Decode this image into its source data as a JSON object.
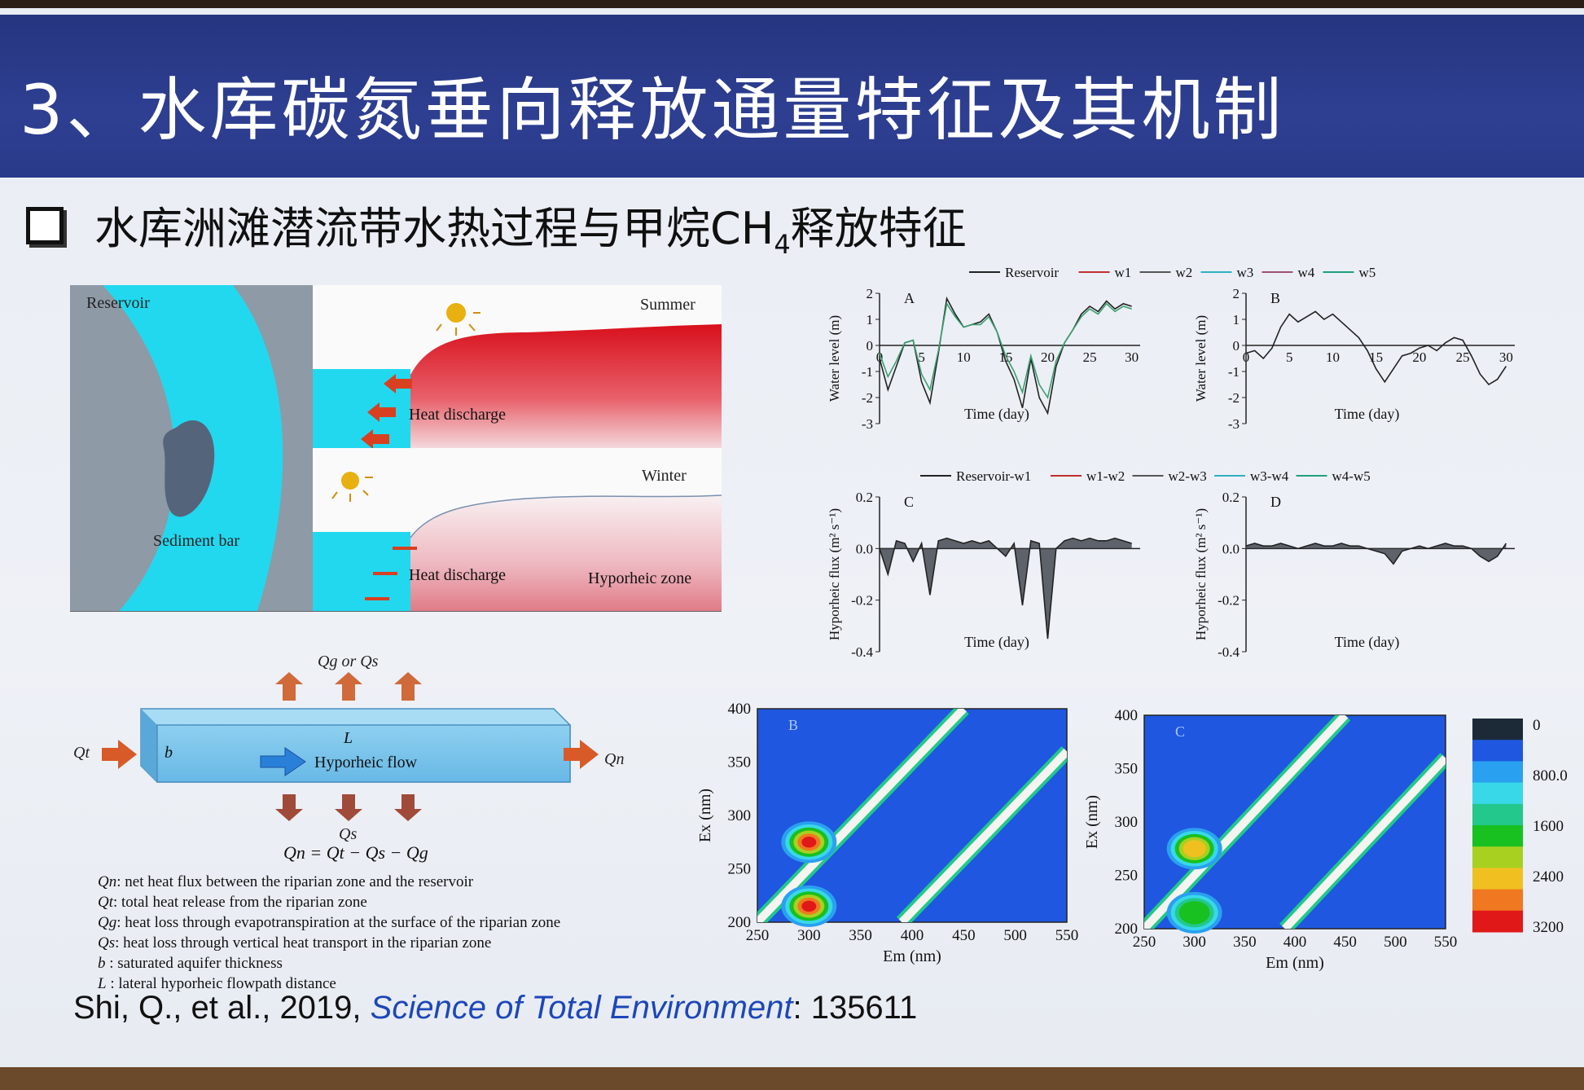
{
  "slide": {
    "title": "3、水库碳氮垂向释放通量特征及其机制",
    "subtitle": "水库洲滩潜流带水热过程与甲烷CH",
    "subtitle_sub": "4",
    "subtitle_tail": "释放特征",
    "citation_authors": "Shi, Q., et al., 2019, ",
    "citation_journal": "Science of Total Environment",
    "citation_number": ": 135611"
  },
  "schematic": {
    "reservoir_label": "Reservoir",
    "sediment_label": "Sediment bar",
    "summer_label": "Summer",
    "winter_label": "Winter",
    "heat_discharge_1": "Heat discharge",
    "heat_discharge_2": "Heat discharge",
    "hyporheic_zone_label": "Hyporheic zone"
  },
  "flow_diagram": {
    "top_label": "Qg or Qs",
    "left_label": "Qt",
    "right_label": "Qn",
    "bottom_label": "Qs",
    "b_label": "b",
    "L_label": "L",
    "flow_label": "Hyporheic flow",
    "equation": "Qn = Qt − Qs − Qg",
    "legend": [
      {
        "sym": "Qn",
        "text": ": net heat flux between the riparian zone and the reservoir"
      },
      {
        "sym": "Qt",
        "text": ": total heat release from the riparian zone"
      },
      {
        "sym": "Qg",
        "text": ": heat loss through evapotranspiration at the surface of the riparian zone"
      },
      {
        "sym": "Qs",
        "text": ": heat loss through vertical heat transport in the riparian zone"
      },
      {
        "sym": "b",
        "text": " :  saturated aquifer thickness"
      },
      {
        "sym": "L",
        "text": " :  lateral hyporheic flowpath distance"
      }
    ]
  },
  "chart_data": [
    {
      "type": "line",
      "panel": "A",
      "legend": [
        "Reservoir",
        "w1",
        "w2",
        "w3",
        "w4",
        "w5"
      ],
      "legend_colors": [
        "#222222",
        "#c03030",
        "#555555",
        "#30b0c0",
        "#a05070",
        "#20a080"
      ],
      "xlabel": "Time (day)",
      "ylabel": "Water level (m)",
      "xlim": [
        0,
        31
      ],
      "ylim": [
        -3,
        2
      ],
      "xticks": [
        "0",
        "5",
        "10",
        "15",
        "20",
        "25",
        "30"
      ],
      "yticks": [
        "2",
        "1",
        "0",
        "-1",
        "-2",
        "-3"
      ],
      "x": [
        0,
        1,
        2,
        3,
        4,
        5,
        6,
        7,
        8,
        9,
        10,
        11,
        12,
        13,
        14,
        15,
        16,
        17,
        18,
        19,
        20,
        21,
        22,
        23,
        24,
        25,
        26,
        27,
        28,
        29,
        30
      ],
      "series": [
        {
          "name": "Reservoir",
          "values": [
            -0.5,
            -1.7,
            -0.8,
            0.1,
            0.2,
            -1.4,
            -2.2,
            -0.3,
            1.8,
            1.2,
            0.7,
            0.8,
            0.9,
            1.2,
            0.5,
            -0.6,
            -1.3,
            -2.4,
            -0.5,
            -2.0,
            -2.6,
            -0.8,
            0.1,
            0.6,
            1.2,
            1.5,
            1.3,
            1.7,
            1.4,
            1.6,
            1.5
          ]
        },
        {
          "name": "w1",
          "values": [
            -0.3,
            -1.2,
            -0.6,
            0.1,
            0.2,
            -1.1,
            -1.7,
            -0.2,
            1.6,
            1.1,
            0.7,
            0.8,
            0.8,
            1.1,
            0.5,
            -0.4,
            -1.0,
            -1.8,
            -0.4,
            -1.5,
            -2.0,
            -0.6,
            0.1,
            0.6,
            1.1,
            1.4,
            1.2,
            1.6,
            1.3,
            1.5,
            1.4
          ]
        }
      ]
    },
    {
      "type": "line",
      "panel": "B",
      "xlabel": "Time (day)",
      "ylabel": "Water level (m)",
      "xlim": [
        0,
        31
      ],
      "ylim": [
        -3,
        2
      ],
      "xticks": [
        "0",
        "5",
        "10",
        "15",
        "20",
        "25",
        "30"
      ],
      "yticks": [
        "2",
        "1",
        "0",
        "-1",
        "-2",
        "-3"
      ],
      "x": [
        0,
        1,
        2,
        3,
        4,
        5,
        6,
        7,
        8,
        9,
        10,
        11,
        12,
        13,
        14,
        15,
        16,
        17,
        18,
        19,
        20,
        21,
        22,
        23,
        24,
        25,
        26,
        27,
        28,
        29,
        30
      ],
      "series": [
        {
          "name": "Reservoir",
          "values": [
            -0.3,
            -0.2,
            -0.5,
            -0.1,
            0.7,
            1.2,
            0.9,
            1.1,
            1.3,
            1.0,
            1.2,
            0.9,
            0.6,
            0.3,
            -0.2,
            -0.9,
            -1.4,
            -0.9,
            -0.4,
            -0.3,
            -0.1,
            0.0,
            -0.2,
            0.1,
            0.3,
            0.2,
            -0.4,
            -1.1,
            -1.5,
            -1.3,
            -0.8
          ]
        }
      ]
    },
    {
      "type": "line",
      "panel": "C",
      "legend": [
        "Reservoir-w1",
        "w1-w2",
        "w2-w3",
        "w3-w4",
        "w4-w5"
      ],
      "legend_colors": [
        "#222222",
        "#c03030",
        "#555555",
        "#30b0c0",
        "#20a080"
      ],
      "xlabel": "Time (day)",
      "ylabel": "Hyporheic flux (m² s⁻¹)",
      "xlim": [
        0,
        31
      ],
      "ylim": [
        -0.4,
        0.2
      ],
      "yticks": [
        "0.2",
        "0.0",
        "-0.2",
        "-0.4"
      ],
      "x": [
        0,
        1,
        2,
        3,
        4,
        5,
        6,
        7,
        8,
        9,
        10,
        11,
        12,
        13,
        14,
        15,
        16,
        17,
        18,
        19,
        20,
        21,
        22,
        23,
        24,
        25,
        26,
        27,
        28,
        29,
        30
      ],
      "series": [
        {
          "name": "Reservoir-w1",
          "values": [
            0.0,
            -0.1,
            0.03,
            0.02,
            -0.05,
            0.02,
            -0.18,
            0.03,
            0.04,
            0.03,
            0.02,
            0.03,
            0.02,
            0.03,
            0.0,
            -0.03,
            0.02,
            -0.22,
            0.03,
            0.02,
            -0.35,
            0.0,
            0.03,
            0.04,
            0.03,
            0.04,
            0.03,
            0.03,
            0.04,
            0.03,
            0.02
          ]
        }
      ]
    },
    {
      "type": "line",
      "panel": "D",
      "xlabel": "Time (day)",
      "ylabel": "Hyporheic flux (m² s⁻¹)",
      "xlim": [
        0,
        31
      ],
      "ylim": [
        -0.4,
        0.2
      ],
      "yticks": [
        "0.2",
        "0.0",
        "-0.2",
        "-0.4"
      ],
      "x": [
        0,
        1,
        2,
        3,
        4,
        5,
        6,
        7,
        8,
        9,
        10,
        11,
        12,
        13,
        14,
        15,
        16,
        17,
        18,
        19,
        20,
        21,
        22,
        23,
        24,
        25,
        26,
        27,
        28,
        29,
        30
      ],
      "series": [
        {
          "name": "Reservoir-w1",
          "values": [
            0.01,
            0.02,
            0.01,
            0.01,
            0.02,
            0.01,
            0.0,
            0.01,
            0.02,
            0.01,
            0.01,
            0.02,
            0.01,
            0.01,
            0.0,
            -0.01,
            -0.02,
            -0.06,
            -0.01,
            0.0,
            0.01,
            0.0,
            0.01,
            0.02,
            0.01,
            0.01,
            0.0,
            -0.03,
            -0.05,
            -0.03,
            0.02
          ]
        }
      ]
    },
    {
      "type": "heatmap",
      "panel": "B",
      "xlabel": "Em (nm)",
      "ylabel": "Ex (nm)",
      "xlim": [
        250,
        550
      ],
      "ylim": [
        200,
        400
      ],
      "xticks": [
        "250",
        "300",
        "350",
        "400",
        "450",
        "500",
        "550"
      ],
      "yticks": [
        "400",
        "350",
        "300",
        "250",
        "200"
      ],
      "peaks": [
        {
          "em": 300,
          "ex": 275,
          "level": 3200
        },
        {
          "em": 300,
          "ex": 215,
          "level": 3200
        }
      ]
    },
    {
      "type": "heatmap",
      "panel": "C",
      "xlabel": "Em (nm)",
      "ylabel": "Ex (nm)",
      "xlim": [
        250,
        550
      ],
      "ylim": [
        200,
        400
      ],
      "xticks": [
        "250",
        "300",
        "350",
        "400",
        "450",
        "500",
        "550"
      ],
      "yticks": [
        "400",
        "350",
        "300",
        "250",
        "200"
      ],
      "peaks": [
        {
          "em": 300,
          "ex": 275,
          "level": 2400
        },
        {
          "em": 300,
          "ex": 215,
          "level": 1600
        }
      ]
    },
    {
      "type": "colorbar",
      "ticks": [
        "0",
        "800.0",
        "1600",
        "2400",
        "3200"
      ],
      "colors": [
        "#1c2a38",
        "#1f57e0",
        "#2aa0f0",
        "#38d8e8",
        "#22c88c",
        "#18c020",
        "#a8d020",
        "#f0c020",
        "#f07820",
        "#e01818"
      ]
    }
  ]
}
